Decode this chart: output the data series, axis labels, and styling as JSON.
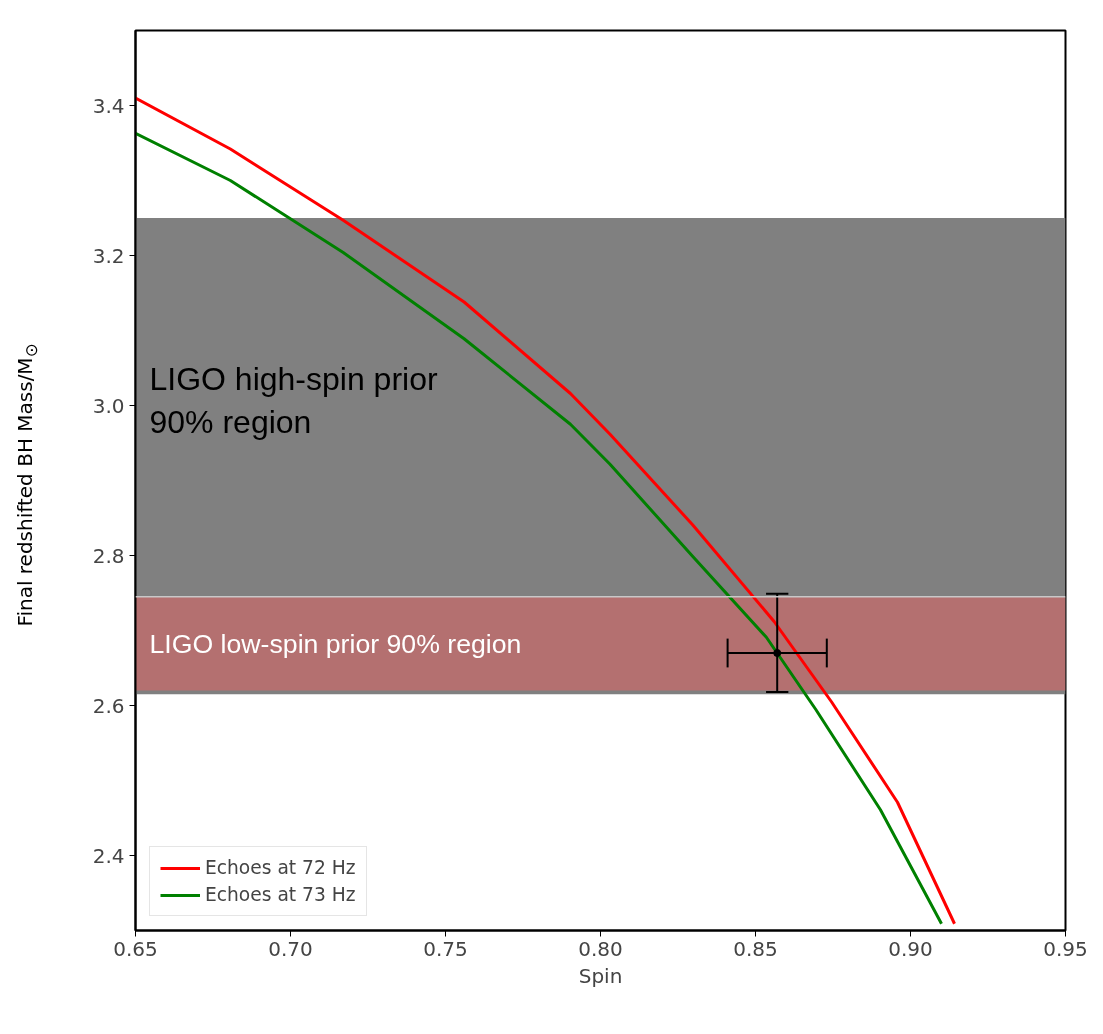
{
  "chart_data": {
    "type": "line",
    "xlabel": "Spin",
    "ylabel": "Final redshifted BH Mass/M$_{⊙}$",
    "xlim": [
      0.65,
      0.95
    ],
    "ylim": [
      2.3,
      3.5
    ],
    "xticks": [
      {
        "value": 0.65,
        "label": "0.65"
      },
      {
        "value": 0.7,
        "label": "0.70"
      },
      {
        "value": 0.75,
        "label": "0.75"
      },
      {
        "value": 0.8,
        "label": "0.80"
      },
      {
        "value": 0.85,
        "label": "0.85"
      },
      {
        "value": 0.9,
        "label": "0.90"
      },
      {
        "value": 0.95,
        "label": "0.95"
      }
    ],
    "yticks": [
      2.4,
      2.6,
      2.8,
      {
        "value": 3.0,
        "label": "3.0"
      },
      3.2,
      3.4
    ],
    "grid": false,
    "legend": "bottom left",
    "line_style": "solid",
    "bands": [
      {
        "axis": "y",
        "from": 2.615,
        "to": 3.25,
        "label": "LIGO high-spin prior\n90% region",
        "color": "#808080"
      },
      {
        "axis": "y",
        "from": 2.62,
        "to": 2.745,
        "label": "LIGO low-spin prior 90% region",
        "color": "#b47070"
      }
    ],
    "ref_lines": [
      {
        "axis": "y",
        "value": 2.745,
        "color": "#c8c8c8"
      }
    ],
    "series": [
      {
        "name": "Echoes at 72 Hz",
        "color": "#ff0000",
        "x": [
          0.65,
          0.6806,
          0.717,
          0.756,
          0.7903,
          0.803,
          0.8297,
          0.856,
          0.8745,
          0.8958,
          0.9142
        ],
        "values": [
          3.41,
          3.342,
          3.247,
          3.138,
          3.016,
          2.962,
          2.841,
          2.712,
          2.605,
          2.471,
          2.309
        ]
      },
      {
        "name": "Echoes at 73 Hz",
        "color": "#008000",
        "x": [
          0.65,
          0.6806,
          0.717,
          0.756,
          0.7903,
          0.803,
          0.8297,
          0.8535,
          0.8694,
          0.8903,
          0.91
        ],
        "values": [
          3.363,
          3.3,
          3.204,
          3.089,
          2.975,
          2.922,
          2.799,
          2.691,
          2.595,
          2.461,
          2.309
        ]
      },
      {
        "type": "scatter",
        "marker": "circle",
        "color": "#000000",
        "x": [
          0.857
        ],
        "values": [
          2.67
        ],
        "errors": [
          [
            2.618,
            2.749
          ]
        ],
        "xerrors": [
          [
            0.841,
            0.873
          ]
        ]
      }
    ]
  }
}
